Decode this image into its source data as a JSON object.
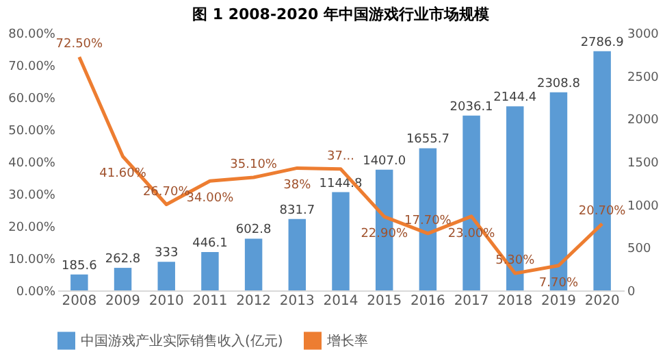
{
  "chart_data": {
    "type": "bar",
    "title": "图 1 2008-2020 年中国游戏行业市场规模",
    "categories": [
      "2008",
      "2009",
      "2010",
      "2011",
      "2012",
      "2013",
      "2014",
      "2015",
      "2016",
      "2017",
      "2018",
      "2019",
      "2020"
    ],
    "series": [
      {
        "name": "中国游戏产业实际销售收入(亿元)",
        "axis": "y2",
        "color": "#5b9bd5",
        "values": [
          185.6,
          262.8,
          333,
          446.1,
          602.8,
          831.7,
          1144.8,
          1407.0,
          1655.7,
          2036.1,
          2144.4,
          2308.8,
          2786.9
        ],
        "value_labels": [
          "185.6",
          "262.8",
          "333",
          "446.1",
          "602.8",
          "831.7",
          "1144.8",
          "1407.0",
          "1655.7",
          "2036.1",
          "2144.4",
          "2308.8",
          "2786.9"
        ]
      },
      {
        "name": "增长率",
        "type": "line",
        "color": "#ed7d31",
        "values": [
          72.5,
          41.6,
          26.7,
          34.0,
          35.1,
          38,
          37.7,
          22.9,
          17.7,
          23.0,
          5.3,
          7.7,
          20.7
        ],
        "value_labels": [
          "72.50%",
          "41.60%",
          "26.70%",
          "34.00%",
          "35.10%",
          "38%",
          "37...",
          "22.90%",
          "17.70%",
          "23.00%",
          "5.30%",
          "7.70%",
          "20.70%"
        ]
      }
    ],
    "ylim": [
      0,
      80
    ],
    "yticks": [
      {
        "value": 0,
        "label": "0.00%"
      },
      {
        "value": 10,
        "label": "10.00%"
      },
      {
        "value": 20,
        "label": "20.00%"
      },
      {
        "value": 30,
        "label": "30.00%"
      },
      {
        "value": 40,
        "label": "40.00%"
      },
      {
        "value": 50,
        "label": "50.00%"
      },
      {
        "value": 60,
        "label": "60.00%"
      },
      {
        "value": 70,
        "label": "70.00%"
      },
      {
        "value": 80,
        "label": "80.00%"
      }
    ],
    "y2lim": [
      0,
      3000
    ],
    "y2ticks": [
      0,
      500,
      1000,
      1500,
      2000,
      2500,
      3000
    ],
    "grid": false,
    "legend": "bottom",
    "marker": "none",
    "line_style": "solid"
  }
}
